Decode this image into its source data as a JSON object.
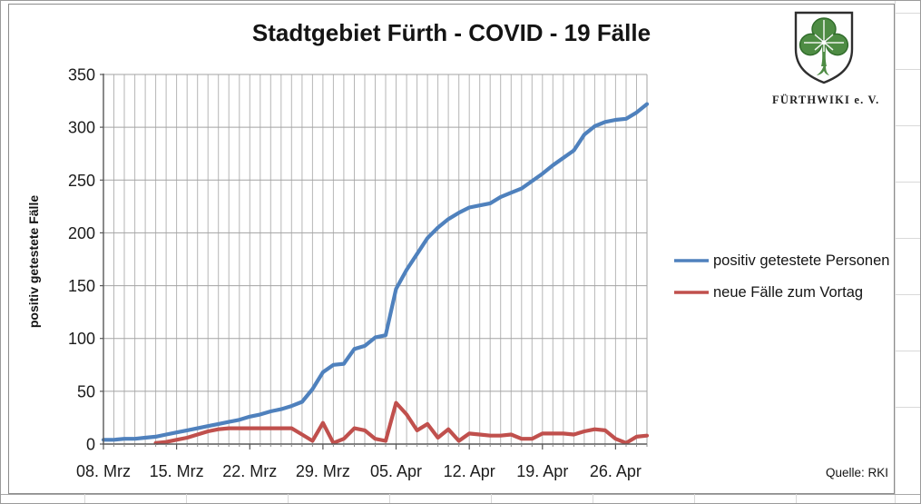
{
  "page": {
    "source_label": "Quelle: RKI"
  },
  "logo": {
    "text": "FÜRTHWIKI e. V."
  },
  "chart_data": {
    "type": "line",
    "title": "Stadtgebiet Fürth - COVID - 19 Fälle",
    "ylabel": "positiv getestete Fälle",
    "ylim": [
      0,
      350
    ],
    "ytick_step": 50,
    "grid": true,
    "legend_position": "right",
    "n_points": 53,
    "x_tick_labels": [
      "08. Mrz",
      "15. Mrz",
      "22. Mrz",
      "29. Mrz",
      "05. Apr",
      "12. Apr",
      "19. Apr",
      "26. Apr"
    ],
    "x_tick_indices": [
      0,
      7,
      14,
      21,
      28,
      35,
      42,
      49
    ],
    "series": [
      {
        "name": "positiv getestete Personen",
        "color": "#4F81BD",
        "start_index": 0,
        "values": [
          4,
          4,
          5,
          5,
          6,
          7,
          9,
          11,
          13,
          15,
          17,
          19,
          21,
          23,
          26,
          28,
          31,
          33,
          36,
          40,
          52,
          68,
          75,
          76,
          90,
          93,
          101,
          103,
          147,
          165,
          180,
          195,
          205,
          213,
          219,
          224,
          226,
          228,
          234,
          238,
          242,
          249,
          256,
          264,
          271,
          278,
          293,
          301,
          305,
          307,
          308,
          314,
          322
        ]
      },
      {
        "name": "neue Fälle zum Vortag",
        "color": "#C0504D",
        "start_index": 5,
        "values": [
          1,
          2,
          4,
          6,
          9,
          12,
          14,
          15,
          15,
          15,
          15,
          15,
          15,
          15,
          9,
          3,
          20,
          1,
          5,
          15,
          13,
          5,
          3,
          39,
          28,
          13,
          19,
          6,
          14,
          3,
          10,
          9,
          8,
          8,
          9,
          5,
          5,
          10,
          10,
          10,
          9,
          12,
          14,
          13,
          5,
          1,
          7,
          8
        ]
      }
    ]
  }
}
